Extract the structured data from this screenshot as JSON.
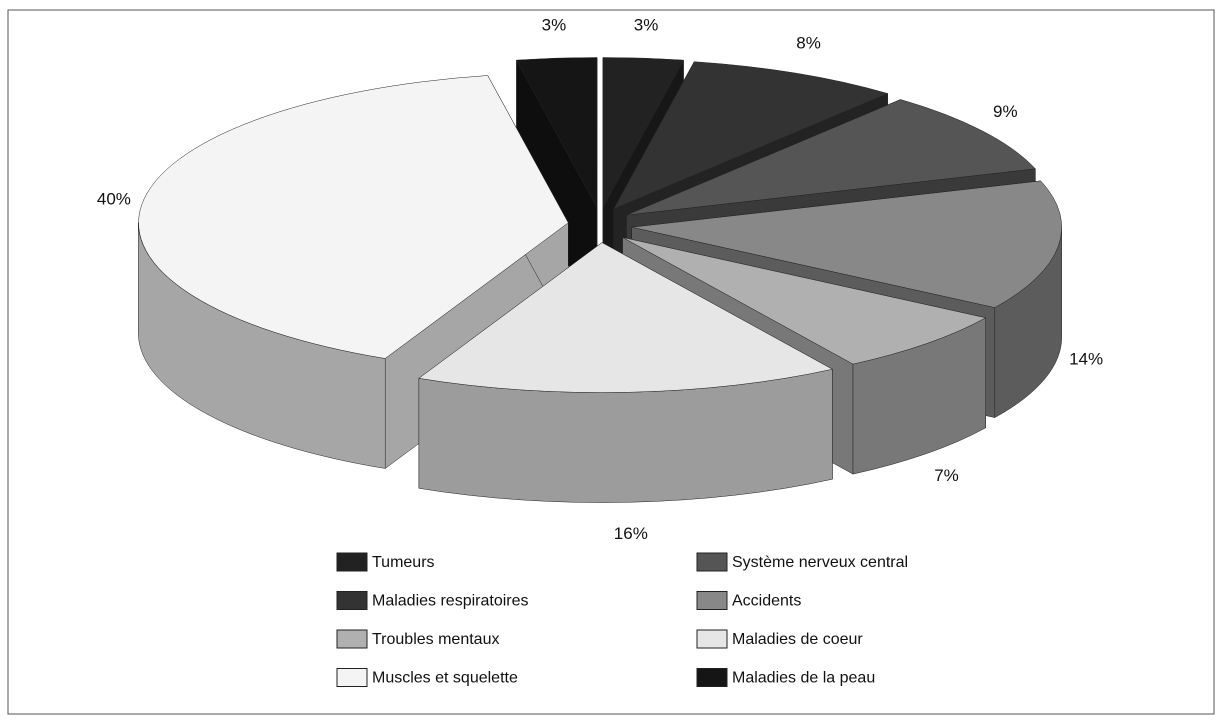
{
  "chart_data": {
    "type": "pie3d",
    "categories": [
      "Tumeurs",
      "Maladies respiratoires",
      "Système nerveux central",
      "Accidents",
      "Troubles mentaux",
      "Maladies de coeur",
      "Muscles et squelette",
      "Maladies de la peau"
    ],
    "values": [
      3,
      8,
      9,
      14,
      7,
      16,
      40,
      3
    ],
    "value_labels": [
      "3%",
      "8%",
      "9%",
      "14%",
      "7%",
      "16%",
      "40%",
      "3%"
    ],
    "colors": [
      "#222222",
      "#333333",
      "#555555",
      "#888888",
      "#b0b0b0",
      "#e6e6e6",
      "#f4f4f4",
      "#151515"
    ]
  }
}
